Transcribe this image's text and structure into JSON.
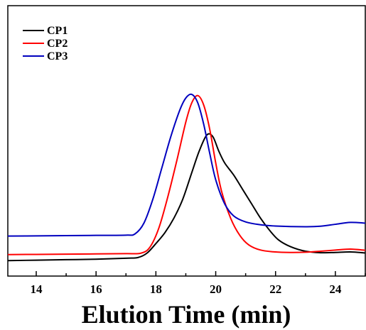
{
  "chart_data": {
    "type": "line",
    "title": "",
    "xlabel": "Elution Time (min)",
    "ylabel": "",
    "xlim": [
      13.05,
      25.0
    ],
    "ylim": [
      0,
      1
    ],
    "xticks": [
      "14",
      "16",
      "18",
      "20",
      "22",
      "24"
    ],
    "y_tick_labels_shown": false,
    "grid": false,
    "legend_position": "top-left",
    "series": [
      {
        "name": "CP1",
        "color": "#000000",
        "points": [
          [
            13.05,
            0.014
          ],
          [
            14.0,
            0.016
          ],
          [
            15.0,
            0.018
          ],
          [
            16.0,
            0.02
          ],
          [
            17.0,
            0.024
          ],
          [
            17.4,
            0.027
          ],
          [
            17.7,
            0.045
          ],
          [
            18.0,
            0.085
          ],
          [
            18.3,
            0.13
          ],
          [
            18.6,
            0.19
          ],
          [
            18.9,
            0.27
          ],
          [
            19.2,
            0.38
          ],
          [
            19.45,
            0.47
          ],
          [
            19.7,
            0.536
          ],
          [
            19.9,
            0.53
          ],
          [
            20.1,
            0.47
          ],
          [
            20.3,
            0.42
          ],
          [
            20.6,
            0.37
          ],
          [
            20.9,
            0.31
          ],
          [
            21.2,
            0.25
          ],
          [
            21.5,
            0.19
          ],
          [
            21.8,
            0.14
          ],
          [
            22.1,
            0.1
          ],
          [
            22.5,
            0.072
          ],
          [
            23.0,
            0.053
          ],
          [
            23.5,
            0.047
          ],
          [
            24.0,
            0.048
          ],
          [
            24.5,
            0.05
          ],
          [
            25.0,
            0.046
          ]
        ]
      },
      {
        "name": "CP2",
        "color": "#ff0000",
        "points": [
          [
            13.05,
            0.039
          ],
          [
            14.0,
            0.04
          ],
          [
            15.0,
            0.041
          ],
          [
            16.0,
            0.042
          ],
          [
            17.0,
            0.043
          ],
          [
            17.5,
            0.045
          ],
          [
            17.8,
            0.07
          ],
          [
            18.1,
            0.15
          ],
          [
            18.4,
            0.28
          ],
          [
            18.7,
            0.43
          ],
          [
            19.0,
            0.59
          ],
          [
            19.2,
            0.67
          ],
          [
            19.4,
            0.7
          ],
          [
            19.6,
            0.66
          ],
          [
            19.8,
            0.56
          ],
          [
            20.0,
            0.42
          ],
          [
            20.2,
            0.3
          ],
          [
            20.5,
            0.19
          ],
          [
            20.8,
            0.12
          ],
          [
            21.1,
            0.08
          ],
          [
            21.5,
            0.058
          ],
          [
            22.0,
            0.05
          ],
          [
            22.5,
            0.048
          ],
          [
            23.0,
            0.049
          ],
          [
            23.5,
            0.053
          ],
          [
            24.0,
            0.058
          ],
          [
            24.5,
            0.062
          ],
          [
            25.0,
            0.057
          ]
        ]
      },
      {
        "name": "CP3",
        "color": "#0000bf",
        "points": [
          [
            13.05,
            0.116
          ],
          [
            14.0,
            0.117
          ],
          [
            15.0,
            0.118
          ],
          [
            16.0,
            0.119
          ],
          [
            17.0,
            0.12
          ],
          [
            17.3,
            0.125
          ],
          [
            17.6,
            0.17
          ],
          [
            17.9,
            0.27
          ],
          [
            18.2,
            0.4
          ],
          [
            18.5,
            0.53
          ],
          [
            18.8,
            0.64
          ],
          [
            19.0,
            0.69
          ],
          [
            19.2,
            0.705
          ],
          [
            19.4,
            0.67
          ],
          [
            19.6,
            0.58
          ],
          [
            19.8,
            0.46
          ],
          [
            20.0,
            0.35
          ],
          [
            20.3,
            0.25
          ],
          [
            20.6,
            0.2
          ],
          [
            21.0,
            0.175
          ],
          [
            21.5,
            0.163
          ],
          [
            22.0,
            0.158
          ],
          [
            23.0,
            0.155
          ],
          [
            23.5,
            0.157
          ],
          [
            24.0,
            0.165
          ],
          [
            24.5,
            0.173
          ],
          [
            25.0,
            0.17
          ]
        ]
      }
    ]
  }
}
